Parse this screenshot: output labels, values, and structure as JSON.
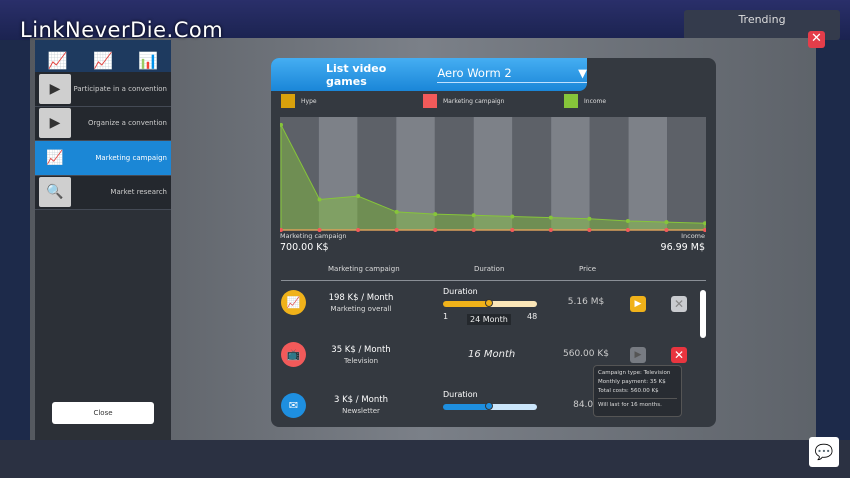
{
  "watermark": "LinkNeverDie.Com",
  "background": {
    "trending": "Trending"
  },
  "sidebar": {
    "items": [
      {
        "label": "Participate in a convention",
        "icon": "convention-icon",
        "active": false
      },
      {
        "label": "Organize a convention",
        "icon": "organize-convention-icon",
        "active": false
      },
      {
        "label": "Marketing campaign",
        "icon": "chart-up-icon",
        "active": true
      },
      {
        "label": "Market research",
        "icon": "clipboard-search-icon",
        "active": false
      }
    ],
    "close_label": "Close"
  },
  "header": {
    "title": "List video games",
    "selected_game": "Aero Worm 2"
  },
  "legend": [
    {
      "label": "Hype",
      "color": "#d9a10c"
    },
    {
      "label": "Marketing campaign",
      "color": "#f25a5a"
    },
    {
      "label": "Income",
      "color": "#86c53a"
    }
  ],
  "chart_data": {
    "type": "area",
    "series": [
      {
        "name": "Income",
        "color": "#86c53a",
        "values": [
          93,
          27,
          30,
          16,
          14,
          13,
          12,
          11,
          10,
          8,
          7,
          6
        ]
      },
      {
        "name": "Marketing campaign",
        "color": "#f25a5a",
        "values": [
          0,
          0,
          0,
          0,
          0,
          0,
          0,
          0,
          0,
          0,
          0,
          0
        ]
      }
    ],
    "ylim": [
      0,
      100
    ],
    "grid": false,
    "left_label": "Marketing campaign",
    "left_value": "700.00 K$",
    "right_label": "Income",
    "right_value": "96.99 M$"
  },
  "table": {
    "headers": [
      "Marketing campaign",
      "Duration",
      "Price"
    ],
    "rows": [
      {
        "monthly": "198 K$ / Month",
        "type": "Marketing overall",
        "duration_label": "Duration",
        "min": "1",
        "max": "48",
        "value": "24 Month",
        "fraction": 0.49,
        "price": "5.16 M$",
        "color": "#f0b21a",
        "icon": "chart-up-icon"
      },
      {
        "monthly": "35 K$ / Month",
        "type": "Television",
        "duration_fixed": "16 Month",
        "price": "560.00 K$",
        "color": "#f25a5a",
        "icon": "television-icon"
      },
      {
        "monthly": "3 K$ / Month",
        "type": "Newsletter",
        "duration_label": "Duration",
        "fraction": 0.49,
        "price": "84.00",
        "color": "#1e8fe0",
        "icon": "newsletter-icon"
      }
    ]
  },
  "tooltip": {
    "line1": "Campaign type: Television",
    "line2": "Monthly payment: 35 K$",
    "line3": "Total costs: 560.00 K$",
    "line4": "Will last for 16 months."
  }
}
